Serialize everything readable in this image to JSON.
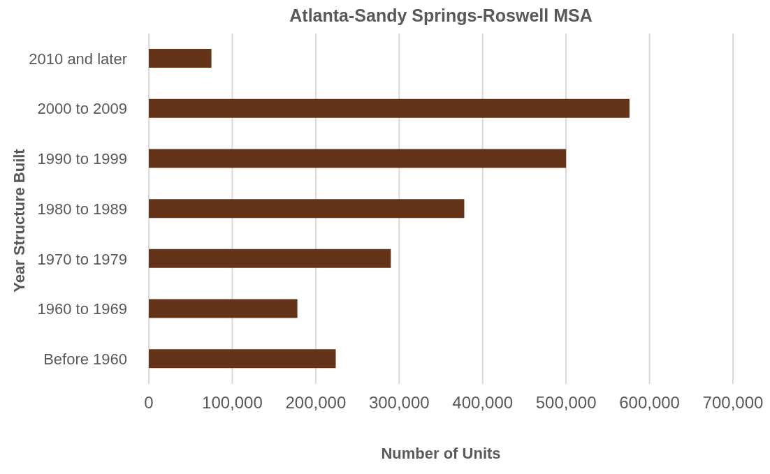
{
  "chart_data": {
    "type": "bar",
    "orientation": "horizontal",
    "title": "Atlanta-Sandy Springs-Roswell MSA",
    "xlabel": "Number of Units",
    "ylabel": "Year Structure Built",
    "categories": [
      "2010 and later",
      "2000 to 2009",
      "1990 to 1999",
      "1980 to 1989",
      "1970 to 1979",
      "1960 to 1969",
      "Before 1960"
    ],
    "values": [
      75000,
      576000,
      500000,
      378000,
      290000,
      178000,
      224000
    ],
    "color": "#643418",
    "xlim": [
      0,
      700000
    ],
    "xticks": [
      {
        "value": 0,
        "label": "0"
      },
      {
        "value": 100000,
        "label": "100,000"
      },
      {
        "value": 200000,
        "label": "200,000"
      },
      {
        "value": 300000,
        "label": "300,000"
      },
      {
        "value": 400000,
        "label": "400,000"
      },
      {
        "value": 500000,
        "label": "500,000"
      },
      {
        "value": 600000,
        "label": "600,000"
      },
      {
        "value": 700000,
        "label": "700,000"
      }
    ],
    "grid": "x"
  }
}
